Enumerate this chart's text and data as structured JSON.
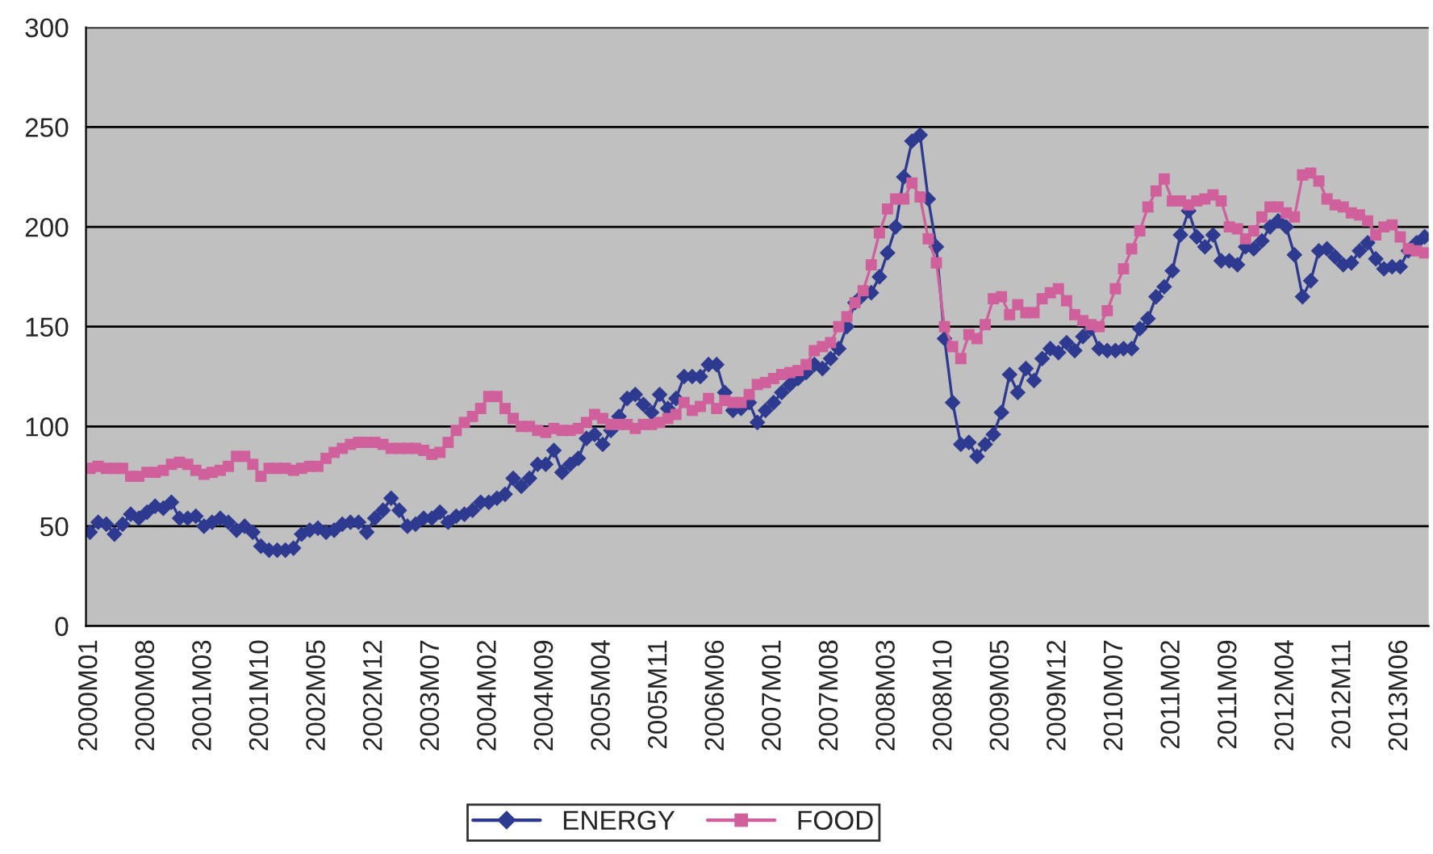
{
  "chart_data": {
    "type": "line",
    "categories": [
      "2000M01",
      null,
      null,
      null,
      null,
      null,
      null,
      "2000M08",
      null,
      null,
      null,
      null,
      null,
      null,
      "2001M03",
      null,
      null,
      null,
      null,
      null,
      null,
      "2001M10",
      null,
      null,
      null,
      null,
      null,
      null,
      "2002M05",
      null,
      null,
      null,
      null,
      null,
      null,
      "2002M12",
      null,
      null,
      null,
      null,
      null,
      null,
      "2003M07",
      null,
      null,
      null,
      null,
      null,
      null,
      "2004M02",
      null,
      null,
      null,
      null,
      null,
      null,
      "2004M09",
      null,
      null,
      null,
      null,
      null,
      null,
      "2005M04",
      null,
      null,
      null,
      null,
      null,
      null,
      "2005M11",
      null,
      null,
      null,
      null,
      null,
      null,
      "2006M06",
      null,
      null,
      null,
      null,
      null,
      null,
      "2007M01",
      null,
      null,
      null,
      null,
      null,
      null,
      "2007M08",
      null,
      null,
      null,
      null,
      null,
      null,
      "2008M03",
      null,
      null,
      null,
      null,
      null,
      null,
      "2008M10",
      null,
      null,
      null,
      null,
      null,
      null,
      "2009M05",
      null,
      null,
      null,
      null,
      null,
      null,
      "2009M12",
      null,
      null,
      null,
      null,
      null,
      null,
      "2010M07",
      null,
      null,
      null,
      null,
      null,
      null,
      "2011M02",
      null,
      null,
      null,
      null,
      null,
      null,
      "2011M09",
      null,
      null,
      null,
      null,
      null,
      null,
      "2012M04",
      null,
      null,
      null,
      null,
      null,
      null,
      "2012M11",
      null,
      null,
      null,
      null,
      null,
      null,
      "2013M06",
      null,
      null,
      null
    ],
    "series": [
      {
        "name": "ENERGY",
        "color": "#2e3a8f",
        "marker": "diamond",
        "values": [
          47,
          52,
          51,
          46,
          51,
          56,
          54,
          57,
          60,
          59,
          62,
          54,
          54,
          55,
          50,
          52,
          54,
          52,
          48,
          50,
          47,
          40,
          38,
          38,
          38,
          39,
          46,
          48,
          49,
          47,
          48,
          51,
          52,
          52,
          47,
          54,
          58,
          64,
          58,
          50,
          51,
          54,
          54,
          57,
          52,
          55,
          56,
          58,
          62,
          62,
          64,
          66,
          74,
          70,
          74,
          81,
          81,
          88,
          77,
          81,
          84,
          94,
          96,
          91,
          98,
          105,
          114,
          116,
          111,
          107,
          116,
          109,
          114,
          125,
          125,
          125,
          131,
          131,
          117,
          108,
          109,
          112,
          102,
          108,
          112,
          117,
          121,
          124,
          127,
          131,
          129,
          134,
          139,
          150,
          162,
          166,
          167,
          175,
          187,
          200,
          225,
          243,
          246,
          214,
          190,
          144,
          112,
          91,
          92,
          85,
          91,
          96,
          107,
          126,
          117,
          129,
          123,
          134,
          139,
          137,
          142,
          138,
          145,
          149,
          139,
          138,
          138,
          139,
          139,
          149,
          154,
          165,
          170,
          178,
          196,
          208,
          195,
          190,
          196,
          183,
          183,
          181,
          190,
          189,
          193,
          200,
          203,
          200,
          186,
          165,
          173,
          188,
          189,
          185,
          181,
          182,
          188,
          192,
          184,
          179,
          180,
          180,
          188,
          192,
          195
        ]
      },
      {
        "name": "FOOD",
        "color": "#d0609c",
        "marker": "square",
        "values": [
          79,
          80,
          79,
          79,
          79,
          75,
          75,
          77,
          77,
          78,
          81,
          82,
          81,
          78,
          76,
          77,
          78,
          80,
          85,
          85,
          81,
          75,
          79,
          79,
          79,
          78,
          79,
          80,
          80,
          84,
          87,
          89,
          91,
          92,
          92,
          92,
          91,
          89,
          89,
          89,
          89,
          88,
          86,
          87,
          92,
          98,
          102,
          105,
          109,
          115,
          115,
          109,
          104,
          100,
          100,
          98,
          97,
          99,
          98,
          98,
          99,
          102,
          106,
          104,
          101,
          101,
          101,
          99,
          101,
          101,
          102,
          104,
          106,
          112,
          108,
          110,
          114,
          109,
          113,
          112,
          112,
          116,
          121,
          122,
          124,
          126,
          127,
          128,
          131,
          138,
          140,
          142,
          150,
          155,
          162,
          168,
          181,
          197,
          209,
          214,
          214,
          222,
          215,
          194,
          182,
          150,
          140,
          134,
          146,
          144,
          151,
          164,
          165,
          156,
          161,
          157,
          157,
          164,
          167,
          169,
          163,
          156,
          153,
          151,
          150,
          158,
          169,
          179,
          189,
          198,
          210,
          218,
          224,
          213,
          213,
          211,
          213,
          214,
          216,
          213,
          200,
          199,
          194,
          198,
          205,
          210,
          210,
          207,
          205,
          226,
          227,
          223,
          214,
          211,
          210,
          207,
          206,
          203,
          196,
          200,
          201,
          195,
          189,
          188,
          187
        ]
      }
    ],
    "ylim": [
      0,
      300
    ],
    "yticks": [
      0,
      50,
      100,
      150,
      200,
      250,
      300
    ],
    "grid": "y",
    "legend": "bottom",
    "line_style": "solid"
  }
}
